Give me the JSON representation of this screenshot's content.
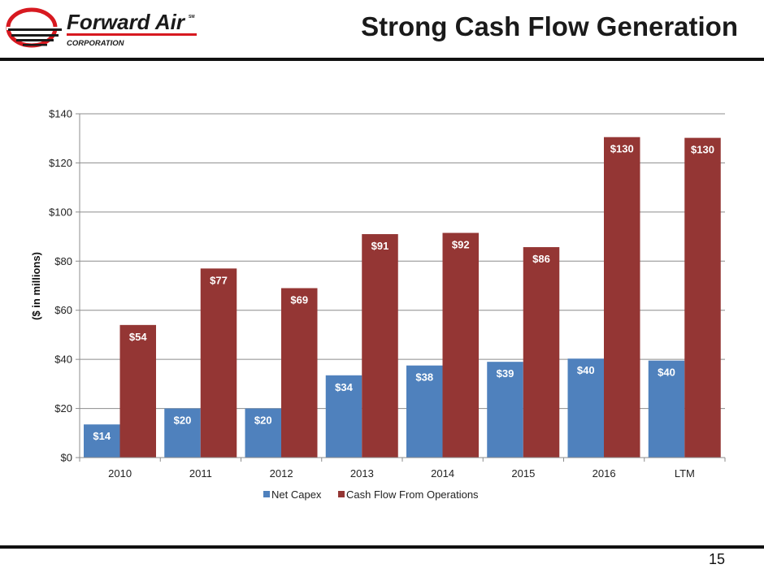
{
  "header": {
    "title": "Strong Cash Flow Generation",
    "logo_name": "Forward Air",
    "logo_trademark": "SM",
    "logo_sub": "CORPORATION"
  },
  "footer": {
    "page_number": "15"
  },
  "colors": {
    "net_capex": "#4F81BD",
    "cash_flow": "#943634",
    "logo_red": "#D71920",
    "logo_dark": "#1A1A1A"
  },
  "chart_data": {
    "type": "bar",
    "title": "",
    "xlabel": "",
    "ylabel": "($ in millions)",
    "ylim": [
      0,
      140
    ],
    "ytick_step": 20,
    "ytick_prefix": "$",
    "categories": [
      "2010",
      "2011",
      "2012",
      "2013",
      "2014",
      "2015",
      "2016",
      "LTM"
    ],
    "series": [
      {
        "name": "Net Capex",
        "color": "#4F81BD",
        "values": [
          13.5,
          20,
          20,
          33.5,
          37.5,
          39,
          40.3,
          39.5
        ],
        "labels": [
          "$14",
          "$20",
          "$20",
          "$34",
          "$38",
          "$39",
          "$40",
          "$40"
        ]
      },
      {
        "name": "Cash Flow From Operations",
        "color": "#943634",
        "values": [
          54,
          77,
          69,
          91,
          91.5,
          85.7,
          130.5,
          130.2
        ],
        "labels": [
          "$54",
          "$77",
          "$69",
          "$91",
          "$92",
          "$86",
          "$130",
          "$130"
        ]
      }
    ],
    "grid": true,
    "legend_position": "bottom"
  }
}
